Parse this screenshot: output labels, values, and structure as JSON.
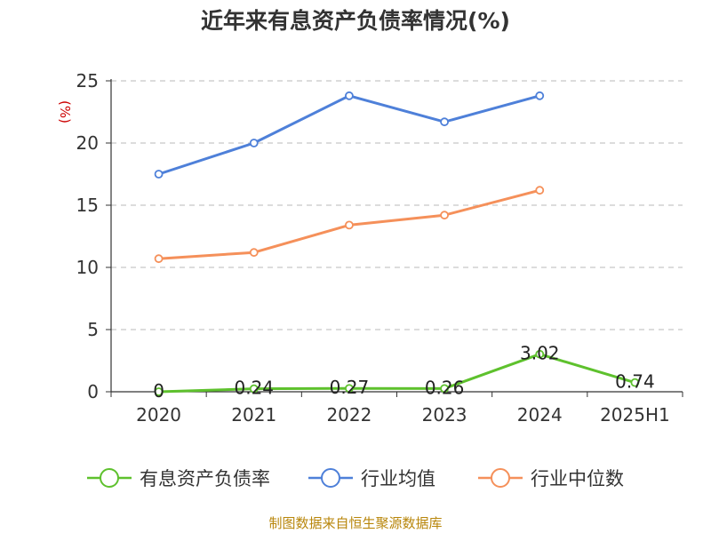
{
  "chart_data": {
    "type": "line",
    "title": "近年来有息资产负债率情况(%)",
    "ylabel": "(%)",
    "x": [
      "2020",
      "2021",
      "2022",
      "2023",
      "2024",
      "2025H1"
    ],
    "ylim": [
      0,
      25
    ],
    "yticks": [
      "0",
      "5",
      "10",
      "15",
      "20",
      "25"
    ],
    "grid": true,
    "legend_position": "bottom",
    "series": [
      {
        "name": "有息资产负债率",
        "color": "#5ec12d",
        "values": [
          0,
          0.24,
          0.27,
          0.26,
          3.02,
          0.74
        ],
        "labels": [
          "0",
          "0.24",
          "0.27",
          "0.26",
          "3.02",
          "0.74"
        ]
      },
      {
        "name": "行业均值",
        "color": "#4e80d9",
        "values": [
          17.5,
          20.0,
          23.8,
          21.7,
          23.8,
          null
        ]
      },
      {
        "name": "行业中位数",
        "color": "#f5905a",
        "values": [
          10.7,
          11.2,
          13.4,
          14.2,
          16.2,
          null
        ]
      }
    ]
  },
  "source": "制图数据来自恒生聚源数据库"
}
